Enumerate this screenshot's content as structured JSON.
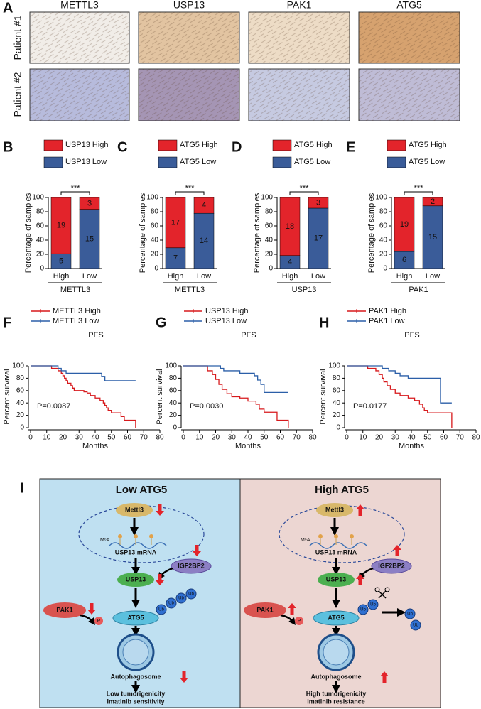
{
  "panel_a": {
    "letter": "A",
    "columns": [
      "METTL3",
      "USP13",
      "PAK1",
      "ATG5"
    ],
    "rows": [
      "Patient #1",
      "Patient #2"
    ]
  },
  "chart_data": [
    {
      "type": "bar",
      "letter": "B",
      "ylabel": "Percentage of samples",
      "categories": [
        "High",
        "Low"
      ],
      "group_label": "METTL3",
      "significance": "***",
      "ylim": [
        0,
        100
      ],
      "yticks": [
        0,
        20,
        40,
        60,
        80,
        100
      ],
      "series": [
        {
          "name": "USP13 High",
          "color": "#e3242b",
          "values": [
            79.2,
            16.7
          ],
          "counts": [
            19,
            3
          ]
        },
        {
          "name": "USP13 Low",
          "color": "#3a5c99",
          "values": [
            20.8,
            83.3
          ],
          "counts": [
            5,
            15
          ]
        }
      ]
    },
    {
      "type": "bar",
      "letter": "C",
      "ylabel": "Percentage of samples",
      "categories": [
        "High",
        "Low"
      ],
      "group_label": "METTL3",
      "significance": "***",
      "ylim": [
        0,
        100
      ],
      "yticks": [
        0,
        20,
        40,
        60,
        80,
        100
      ],
      "series": [
        {
          "name": "ATG5 High",
          "color": "#e3242b",
          "values": [
            70.8,
            22.2
          ],
          "counts": [
            17,
            4
          ]
        },
        {
          "name": "ATG5 Low",
          "color": "#3a5c99",
          "values": [
            29.2,
            77.8
          ],
          "counts": [
            7,
            14
          ]
        }
      ]
    },
    {
      "type": "bar",
      "letter": "D",
      "ylabel": "Percentage of samples",
      "categories": [
        "High",
        "Low"
      ],
      "group_label": "USP13",
      "significance": "***",
      "ylim": [
        0,
        100
      ],
      "yticks": [
        0,
        20,
        40,
        60,
        80,
        100
      ],
      "series": [
        {
          "name": "ATG5 High",
          "color": "#e3242b",
          "values": [
            81.8,
            15
          ],
          "counts": [
            18,
            3
          ]
        },
        {
          "name": "ATG5 Low",
          "color": "#3a5c99",
          "values": [
            18.2,
            85
          ],
          "counts": [
            4,
            17
          ]
        }
      ]
    },
    {
      "type": "bar",
      "letter": "E",
      "ylabel": "Percentage of samples",
      "categories": [
        "High",
        "Low"
      ],
      "group_label": "PAK1",
      "significance": "***",
      "ylim": [
        0,
        100
      ],
      "yticks": [
        0,
        20,
        40,
        60,
        80,
        100
      ],
      "series": [
        {
          "name": "ATG5 High",
          "color": "#e3242b",
          "values": [
            76,
            11.8
          ],
          "counts": [
            19,
            2
          ]
        },
        {
          "name": "ATG5 Low",
          "color": "#3a5c99",
          "values": [
            24,
            88.2
          ],
          "counts": [
            6,
            15
          ]
        }
      ]
    },
    {
      "type": "line",
      "letter": "F",
      "title": "PFS",
      "xlabel": "Months",
      "ylabel": "Percent survival",
      "annotation": "P=0.0087",
      "xlim": [
        0,
        80
      ],
      "xticks": [
        0,
        10,
        20,
        30,
        40,
        50,
        60,
        70,
        80
      ],
      "ylim": [
        0,
        100
      ],
      "yticks": [
        0,
        20,
        40,
        60,
        80,
        100
      ],
      "series": [
        {
          "name": "METTL3 High",
          "color": "#d7191c",
          "x": [
            0,
            13,
            17,
            19,
            20,
            21,
            22,
            23,
            25,
            26,
            27,
            33,
            35,
            37,
            40,
            43,
            45,
            46,
            47,
            48,
            50,
            56,
            58,
            65
          ],
          "values": [
            100,
            96,
            92,
            88,
            84,
            80,
            76,
            72,
            68,
            64,
            60,
            58,
            56,
            52,
            48,
            44,
            40,
            36,
            32,
            28,
            24,
            18,
            12,
            0
          ]
        },
        {
          "name": "METTL3 Low",
          "color": "#2b5fa8",
          "x": [
            0,
            17,
            19,
            22,
            44,
            46,
            65
          ],
          "values": [
            100,
            96,
            92,
            88,
            83,
            76,
            76
          ]
        }
      ]
    },
    {
      "type": "line",
      "letter": "G",
      "title": "PFS",
      "xlabel": "Months",
      "ylabel": "Percent survival",
      "annotation": "P=0.0030",
      "xlim": [
        0,
        80
      ],
      "xticks": [
        0,
        10,
        20,
        30,
        40,
        50,
        60,
        70,
        80
      ],
      "ylim": [
        0,
        100
      ],
      "yticks": [
        0,
        20,
        40,
        60,
        80,
        100
      ],
      "series": [
        {
          "name": "USP13 High",
          "color": "#d7191c",
          "x": [
            0,
            15,
            18,
            20,
            22,
            24,
            27,
            30,
            35,
            40,
            45,
            47,
            50,
            58,
            65
          ],
          "values": [
            100,
            92,
            86,
            78,
            70,
            62,
            55,
            50,
            48,
            43,
            38,
            30,
            25,
            12,
            0
          ]
        },
        {
          "name": "USP13 Low",
          "color": "#2b5fa8",
          "x": [
            0,
            23,
            25,
            35,
            44,
            46,
            48,
            50,
            65
          ],
          "values": [
            100,
            96,
            92,
            88,
            84,
            77,
            70,
            57,
            57
          ]
        }
      ]
    },
    {
      "type": "line",
      "letter": "H",
      "title": "PFS",
      "xlabel": "Months",
      "ylabel": "Percent survival",
      "annotation": "P=0.0177",
      "xlim": [
        0,
        80
      ],
      "xticks": [
        0,
        10,
        20,
        30,
        40,
        50,
        60,
        70,
        80
      ],
      "ylim": [
        0,
        100
      ],
      "yticks": [
        0,
        20,
        40,
        60,
        80,
        100
      ],
      "series": [
        {
          "name": "PAK1 High",
          "color": "#d7191c",
          "x": [
            0,
            13,
            18,
            20,
            22,
            23,
            25,
            27,
            30,
            33,
            38,
            42,
            45,
            47,
            48,
            50,
            65
          ],
          "values": [
            100,
            96,
            92,
            86,
            80,
            74,
            68,
            62,
            56,
            52,
            48,
            44,
            38,
            32,
            28,
            24,
            0
          ]
        },
        {
          "name": "PAK1 Low",
          "color": "#2b5fa8",
          "x": [
            0,
            22,
            26,
            30,
            33,
            38,
            58,
            65
          ],
          "values": [
            100,
            96,
            92,
            88,
            84,
            80,
            40,
            40
          ]
        }
      ]
    }
  ],
  "panel_i": {
    "letter": "I",
    "left": {
      "title": "Low ATG5",
      "mettl3": "Mettl3",
      "m6a": "M⁶A",
      "mrna": "USP13 mRNA",
      "igf2bp2": "IGF2BP2",
      "usp13": "USP13",
      "pak1": "PAK1",
      "atg5": "ATG5",
      "ub": "Ub",
      "p": "P",
      "autophagosome": "Autophagosome",
      "outcome": [
        "Low tumorigenicity",
        "Imatinib sensitivity"
      ]
    },
    "right": {
      "title": "High ATG5",
      "mettl3": "Mettl3",
      "m6a": "M⁶A",
      "mrna": "USP13 mRNA",
      "igf2bp2": "IGF2BP2",
      "usp13": "USP13",
      "pak1": "PAK1",
      "atg5": "ATG5",
      "ub": "Ub",
      "p": "P",
      "autophagosome": "Autophagosome",
      "outcome": [
        "High tumorigenicity",
        "Imatinib resistance"
      ]
    }
  }
}
